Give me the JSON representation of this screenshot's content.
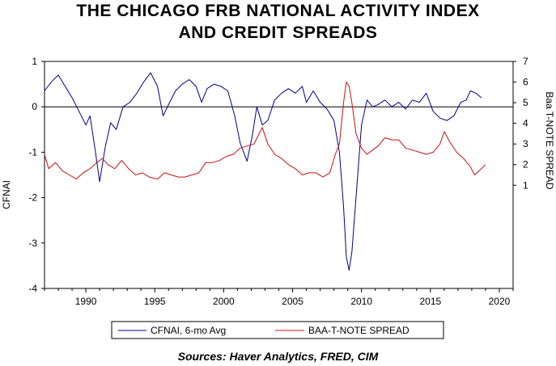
{
  "title_line1": "THE CHICAGO FRB NATIONAL ACTIVITY INDEX",
  "title_line2": "AND CREDIT SPREADS",
  "source": "Sources:  Haver Analytics, FRED, CIM",
  "chart_data": {
    "type": "line",
    "xlim": [
      1987,
      2021
    ],
    "x_ticks": [
      1990,
      1995,
      2000,
      2005,
      2010,
      2015,
      2020
    ],
    "left_axis": {
      "label": "CFNAI",
      "ylim": [
        -4,
        1
      ],
      "ticks": [
        -4,
        -3,
        -2,
        -1,
        0,
        1
      ],
      "zero_line": true
    },
    "right_axis": {
      "label": "Baa T-NOTE SPREAD",
      "ylim": [
        -4,
        7
      ],
      "ticks": [
        1,
        2,
        3,
        4,
        5,
        6,
        7
      ]
    },
    "grid": false,
    "legend_position": "bottom",
    "series": [
      {
        "name": "CFNAI, 6-mo Avg",
        "axis": "left",
        "color": "#00008b",
        "points": [
          [
            1987.0,
            0.35
          ],
          [
            1987.5,
            0.55
          ],
          [
            1988.0,
            0.7
          ],
          [
            1988.5,
            0.45
          ],
          [
            1989.0,
            0.2
          ],
          [
            1989.5,
            -0.1
          ],
          [
            1990.0,
            -0.4
          ],
          [
            1990.3,
            -0.2
          ],
          [
            1990.7,
            -1.0
          ],
          [
            1991.0,
            -1.65
          ],
          [
            1991.4,
            -0.9
          ],
          [
            1991.8,
            -0.35
          ],
          [
            1992.2,
            -0.5
          ],
          [
            1992.7,
            0.0
          ],
          [
            1993.2,
            0.1
          ],
          [
            1993.7,
            0.3
          ],
          [
            1994.2,
            0.55
          ],
          [
            1994.7,
            0.75
          ],
          [
            1995.2,
            0.45
          ],
          [
            1995.6,
            -0.2
          ],
          [
            1996.0,
            0.05
          ],
          [
            1996.5,
            0.35
          ],
          [
            1997.0,
            0.5
          ],
          [
            1997.5,
            0.6
          ],
          [
            1998.0,
            0.45
          ],
          [
            1998.4,
            0.1
          ],
          [
            1998.8,
            0.4
          ],
          [
            1999.3,
            0.5
          ],
          [
            1999.8,
            0.45
          ],
          [
            2000.3,
            0.35
          ],
          [
            2000.8,
            -0.2
          ],
          [
            2001.2,
            -0.8
          ],
          [
            2001.7,
            -1.2
          ],
          [
            2002.1,
            -0.6
          ],
          [
            2002.4,
            0.0
          ],
          [
            2002.8,
            -0.4
          ],
          [
            2003.2,
            -0.3
          ],
          [
            2003.7,
            0.15
          ],
          [
            2004.2,
            0.3
          ],
          [
            2004.7,
            0.4
          ],
          [
            2005.2,
            0.3
          ],
          [
            2005.7,
            0.45
          ],
          [
            2006.0,
            0.1
          ],
          [
            2006.5,
            0.35
          ],
          [
            2007.0,
            0.1
          ],
          [
            2007.5,
            -0.05
          ],
          [
            2008.0,
            -0.3
          ],
          [
            2008.4,
            -1.0
          ],
          [
            2008.7,
            -2.2
          ],
          [
            2008.9,
            -3.3
          ],
          [
            2009.1,
            -3.6
          ],
          [
            2009.3,
            -3.2
          ],
          [
            2009.6,
            -2.0
          ],
          [
            2010.0,
            -0.4
          ],
          [
            2010.4,
            0.15
          ],
          [
            2010.8,
            0.0
          ],
          [
            2011.2,
            0.05
          ],
          [
            2011.7,
            0.15
          ],
          [
            2012.2,
            0.0
          ],
          [
            2012.7,
            0.1
          ],
          [
            2013.2,
            -0.05
          ],
          [
            2013.7,
            0.15
          ],
          [
            2014.2,
            0.1
          ],
          [
            2014.7,
            0.3
          ],
          [
            2015.2,
            -0.1
          ],
          [
            2015.7,
            -0.25
          ],
          [
            2016.2,
            -0.3
          ],
          [
            2016.7,
            -0.2
          ],
          [
            2017.2,
            0.1
          ],
          [
            2017.6,
            0.15
          ],
          [
            2017.9,
            0.35
          ],
          [
            2018.3,
            0.3
          ],
          [
            2018.7,
            0.2
          ]
        ]
      },
      {
        "name": "BAA-T-NOTE SPREAD",
        "axis": "right",
        "color": "#cc1010",
        "points": [
          [
            1987.0,
            2.5
          ],
          [
            1987.3,
            1.8
          ],
          [
            1987.8,
            2.1
          ],
          [
            1988.3,
            1.7
          ],
          [
            1988.8,
            1.5
          ],
          [
            1989.3,
            1.3
          ],
          [
            1989.8,
            1.6
          ],
          [
            1990.3,
            1.8
          ],
          [
            1990.8,
            2.1
          ],
          [
            1991.2,
            2.3
          ],
          [
            1991.6,
            2.0
          ],
          [
            1992.1,
            1.8
          ],
          [
            1992.6,
            2.2
          ],
          [
            1993.1,
            1.8
          ],
          [
            1993.6,
            1.5
          ],
          [
            1994.1,
            1.6
          ],
          [
            1994.6,
            1.4
          ],
          [
            1995.2,
            1.3
          ],
          [
            1995.7,
            1.6
          ],
          [
            1996.2,
            1.5
          ],
          [
            1996.7,
            1.4
          ],
          [
            1997.2,
            1.4
          ],
          [
            1997.7,
            1.5
          ],
          [
            1998.2,
            1.6
          ],
          [
            1998.7,
            2.1
          ],
          [
            1999.2,
            2.1
          ],
          [
            1999.7,
            2.2
          ],
          [
            2000.2,
            2.4
          ],
          [
            2000.7,
            2.5
          ],
          [
            2001.2,
            2.8
          ],
          [
            2001.7,
            2.9
          ],
          [
            2002.2,
            3.0
          ],
          [
            2002.5,
            3.4
          ],
          [
            2002.8,
            3.8
          ],
          [
            2003.2,
            3.0
          ],
          [
            2003.7,
            2.5
          ],
          [
            2004.2,
            2.3
          ],
          [
            2004.7,
            2.0
          ],
          [
            2005.2,
            1.8
          ],
          [
            2005.7,
            1.5
          ],
          [
            2006.2,
            1.6
          ],
          [
            2006.7,
            1.6
          ],
          [
            2007.2,
            1.4
          ],
          [
            2007.7,
            1.6
          ],
          [
            2008.1,
            2.5
          ],
          [
            2008.4,
            3.0
          ],
          [
            2008.7,
            5.0
          ],
          [
            2008.9,
            6.0
          ],
          [
            2009.1,
            5.8
          ],
          [
            2009.3,
            5.0
          ],
          [
            2009.6,
            3.5
          ],
          [
            2010.0,
            2.8
          ],
          [
            2010.4,
            2.5
          ],
          [
            2010.8,
            2.7
          ],
          [
            2011.2,
            2.9
          ],
          [
            2011.7,
            3.3
          ],
          [
            2012.2,
            3.2
          ],
          [
            2012.7,
            3.2
          ],
          [
            2013.2,
            2.8
          ],
          [
            2013.7,
            2.7
          ],
          [
            2014.2,
            2.6
          ],
          [
            2014.7,
            2.5
          ],
          [
            2015.2,
            2.6
          ],
          [
            2015.7,
            3.0
          ],
          [
            2016.0,
            3.6
          ],
          [
            2016.4,
            3.1
          ],
          [
            2016.9,
            2.6
          ],
          [
            2017.4,
            2.3
          ],
          [
            2017.9,
            1.9
          ],
          [
            2018.2,
            1.5
          ],
          [
            2018.7,
            1.8
          ],
          [
            2019.0,
            2.0
          ]
        ]
      }
    ]
  }
}
